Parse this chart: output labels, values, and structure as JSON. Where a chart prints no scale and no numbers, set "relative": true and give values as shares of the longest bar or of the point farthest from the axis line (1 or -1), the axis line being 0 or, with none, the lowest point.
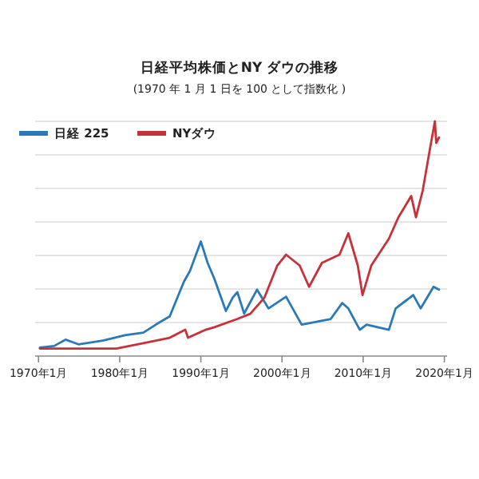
{
  "chart_data": {
    "type": "line",
    "title": "日経平均株価とNY ダウの推移",
    "subtitle": "(1970 年 1 月 1 日を 100 として指数化 )",
    "relative": true,
    "grid": "y",
    "legend": "top left",
    "xlim": [
      "1969-08",
      "2020-05"
    ],
    "xticks": [
      {
        "value": "1970-01",
        "label": "1970年1月"
      },
      {
        "value": "1980-01",
        "label": "1980年1月"
      },
      {
        "value": "1990-01",
        "label": "1990年1月"
      },
      {
        "value": "2000-01",
        "label": "2000年1月"
      },
      {
        "value": "2010-01",
        "label": "2010年1月"
      },
      {
        "value": "2020-01",
        "label": "2020年1月"
      }
    ],
    "series": [
      {
        "name": "日経 225",
        "color": "#2a7ab9",
        "x": [
          "1970-03",
          "1971-12",
          "1973-05",
          "1974-12",
          "1977-12",
          "1980-09",
          "1982-12",
          "1984-07",
          "1986-03",
          "1987-12",
          "1988-09",
          "1990-01",
          "1990-11",
          "1991-09",
          "1993-02",
          "1993-12",
          "1994-07",
          "1995-05",
          "1996-12",
          "1998-05",
          "2000-07",
          "2002-06",
          "2004-02",
          "2006-01",
          "2007-06",
          "2008-03",
          "2009-08",
          "2010-06",
          "2013-03",
          "2014-01",
          "2016-03",
          "2017-02",
          "2018-09",
          "2019-05"
        ],
        "values": [
          0.036,
          0.043,
          0.07,
          0.05,
          0.066,
          0.089,
          0.1,
          0.135,
          0.169,
          0.317,
          0.363,
          0.488,
          0.397,
          0.329,
          0.192,
          0.249,
          0.272,
          0.181,
          0.283,
          0.203,
          0.253,
          0.134,
          0.145,
          0.158,
          0.226,
          0.203,
          0.112,
          0.134,
          0.112,
          0.203,
          0.26,
          0.203,
          0.295,
          0.283
        ]
      },
      {
        "name": "NYダウ",
        "color": "#c8303a",
        "x": [
          "1970-03",
          "1975-03",
          "1979-08",
          "1982-12",
          "1986-03",
          "1988-02",
          "1988-06",
          "1990-08",
          "1991-09",
          "1994-07",
          "1996-02",
          "1997-11",
          "1999-06",
          "2000-07",
          "2002-03",
          "2003-05",
          "2004-12",
          "2007-02",
          "2008-03",
          "2009-05",
          "2009-12",
          "2011-01",
          "2013-03",
          "2014-05",
          "2015-12",
          "2016-07",
          "2017-05",
          "2018-02",
          "2018-11",
          "2019-01",
          "2019-05"
        ],
        "values": [
          0.032,
          0.032,
          0.032,
          0.055,
          0.078,
          0.112,
          0.078,
          0.112,
          0.123,
          0.158,
          0.18,
          0.249,
          0.386,
          0.432,
          0.386,
          0.295,
          0.397,
          0.432,
          0.523,
          0.386,
          0.26,
          0.386,
          0.5,
          0.591,
          0.682,
          0.591,
          0.705,
          0.855,
          1.0,
          0.908,
          0.931
        ]
      }
    ]
  }
}
